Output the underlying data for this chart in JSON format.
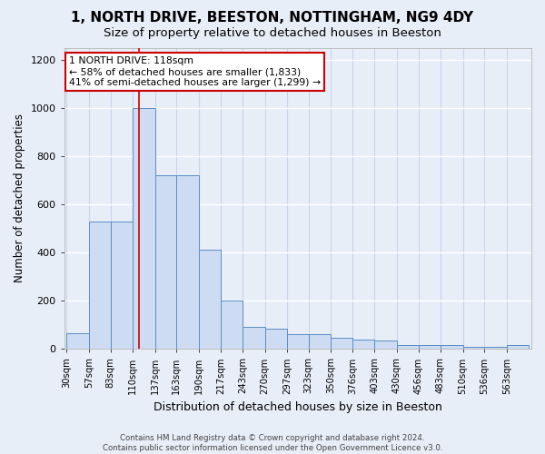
{
  "title": "1, NORTH DRIVE, BEESTON, NOTTINGHAM, NG9 4DY",
  "subtitle": "Size of property relative to detached houses in Beeston",
  "xlabel": "Distribution of detached houses by size in Beeston",
  "ylabel": "Number of detached properties",
  "bin_labels": [
    "30sqm",
    "57sqm",
    "83sqm",
    "110sqm",
    "137sqm",
    "163sqm",
    "190sqm",
    "217sqm",
    "243sqm",
    "270sqm",
    "297sqm",
    "323sqm",
    "350sqm",
    "376sqm",
    "403sqm",
    "430sqm",
    "456sqm",
    "483sqm",
    "510sqm",
    "536sqm",
    "563sqm"
  ],
  "bin_edges": [
    30,
    57,
    83,
    110,
    137,
    163,
    190,
    217,
    243,
    270,
    297,
    323,
    350,
    376,
    403,
    430,
    456,
    483,
    510,
    536,
    563,
    590
  ],
  "bar_heights": [
    65,
    530,
    530,
    1000,
    720,
    720,
    410,
    200,
    90,
    85,
    60,
    60,
    45,
    40,
    35,
    15,
    15,
    15,
    10,
    10,
    15
  ],
  "bar_color": "#cddcf2",
  "bar_edgecolor": "#5b8ec4",
  "vline_x": 118,
  "vline_color": "#cc0000",
  "ylim": [
    0,
    1250
  ],
  "yticks": [
    0,
    200,
    400,
    600,
    800,
    1000,
    1200
  ],
  "annotation_title": "1 NORTH DRIVE: 118sqm",
  "annotation_line2": "← 58% of detached houses are smaller (1,833)",
  "annotation_line3": "41% of semi-detached houses are larger (1,299) →",
  "annotation_box_color": "#ffffff",
  "annotation_box_edgecolor": "#cc0000",
  "footer_line1": "Contains HM Land Registry data © Crown copyright and database right 2024.",
  "footer_line2": "Contains public sector information licensed under the Open Government Licence v3.0.",
  "background_color": "#e8eef8",
  "grid_color": "#d8e0ef",
  "title_fontsize": 11,
  "subtitle_fontsize": 9.5
}
